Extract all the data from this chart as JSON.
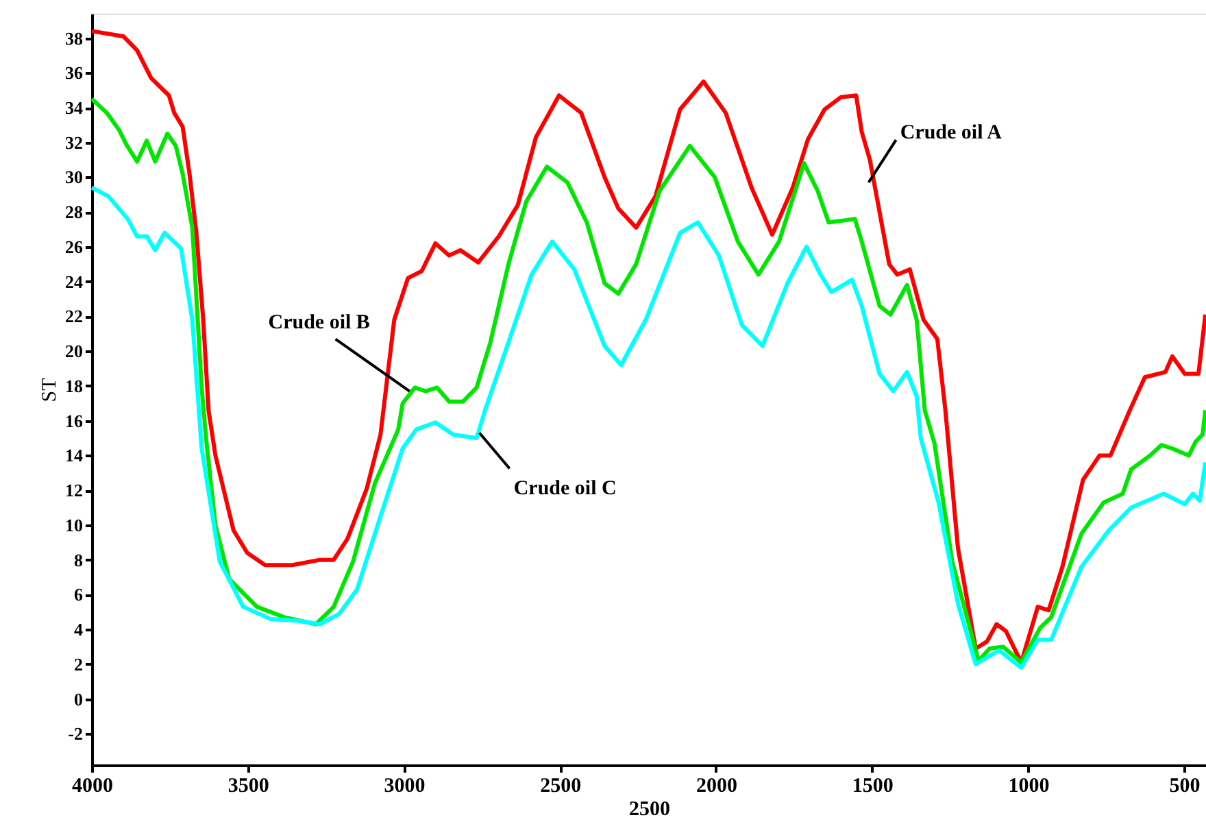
{
  "chart_data": {
    "type": "line",
    "xlabel": "2500",
    "ylabel": "ST",
    "xlim": [
      4000,
      430
    ],
    "ylim": [
      -3.8,
      39.4
    ],
    "xticks": [
      4000,
      3500,
      3000,
      2500,
      2000,
      1500,
      1000,
      500
    ],
    "yticks": [
      -2,
      0,
      2,
      4,
      6,
      8,
      10,
      12,
      14,
      16,
      18,
      20,
      22,
      24,
      26,
      28,
      30,
      32,
      34,
      36,
      38
    ],
    "grid": false,
    "marker": "none",
    "line_style": "solid",
    "series": [
      {
        "color": "#ff0000",
        "x": [
          4000,
          3899,
          3855,
          3810,
          3753,
          3736,
          3709,
          3687,
          3665,
          3643,
          3626,
          3604,
          3546,
          3502,
          3445,
          3357,
          3269,
          3225,
          3181,
          3119,
          3075,
          3031,
          2987,
          2943,
          2899,
          2855,
          2819,
          2762,
          2696,
          2635,
          2577,
          2503,
          2432,
          2357,
          2313,
          2256,
          2194,
          2115,
          2040,
          1969,
          1886,
          1820,
          1754,
          1705,
          1652,
          1600,
          1551,
          1533,
          1507,
          1445,
          1419,
          1379,
          1335,
          1291,
          1265,
          1225,
          1168,
          1132,
          1101,
          1071,
          1022,
          969,
          934,
          890,
          824,
          771,
          736,
          674,
          626,
          560,
          538,
          498,
          454,
          432
        ],
        "values": [
          38.4,
          38.1,
          37.3,
          35.7,
          34.7,
          33.7,
          32.9,
          30.2,
          26.8,
          21.8,
          16.6,
          14.0,
          9.7,
          8.4,
          7.7,
          7.7,
          8.0,
          8.0,
          9.2,
          12.1,
          15.2,
          21.8,
          24.2,
          24.6,
          26.2,
          25.5,
          25.8,
          25.1,
          26.6,
          28.4,
          32.3,
          34.7,
          33.7,
          30.0,
          28.2,
          27.1,
          28.9,
          33.9,
          35.5,
          33.7,
          29.4,
          26.7,
          29.4,
          32.2,
          33.9,
          34.6,
          34.7,
          32.6,
          31.0,
          25.0,
          24.4,
          24.7,
          21.8,
          20.7,
          16.6,
          8.7,
          2.9,
          3.3,
          4.3,
          3.9,
          2.1,
          5.3,
          5.1,
          7.6,
          12.6,
          14.0,
          14.0,
          16.6,
          18.5,
          18.8,
          19.7,
          18.7,
          18.7,
          22.1
        ]
      },
      {
        "color": "#00e600",
        "x": [
          4000,
          3952,
          3912,
          3890,
          3855,
          3824,
          3797,
          3758,
          3731,
          3709,
          3678,
          3648,
          3634,
          3604,
          3560,
          3471,
          3383,
          3282,
          3225,
          3163,
          3093,
          3018,
          3004,
          2965,
          2930,
          2894,
          2855,
          2811,
          2767,
          2723,
          2665,
          2608,
          2542,
          2476,
          2414,
          2357,
          2313,
          2256,
          2181,
          2084,
          2004,
          1930,
          1864,
          1798,
          1718,
          1674,
          1639,
          1555,
          1533,
          1476,
          1441,
          1388,
          1357,
          1331,
          1300,
          1243,
          1159,
          1123,
          1080,
          1022,
          961,
          926,
          829,
          758,
          697,
          670,
          609,
          573,
          538,
          485,
          463,
          441,
          432
        ],
        "values": [
          34.5,
          33.7,
          32.7,
          31.9,
          30.9,
          32.1,
          30.9,
          32.5,
          31.8,
          30.2,
          27.1,
          17.9,
          15.0,
          10.0,
          6.9,
          5.3,
          4.7,
          4.3,
          5.3,
          7.9,
          12.4,
          15.5,
          17.0,
          17.9,
          17.7,
          17.9,
          17.1,
          17.1,
          17.9,
          20.5,
          25.0,
          28.6,
          30.6,
          29.7,
          27.4,
          23.9,
          23.3,
          25.0,
          29.2,
          31.8,
          30.0,
          26.3,
          24.4,
          26.3,
          30.8,
          29.2,
          27.4,
          27.6,
          26.3,
          22.6,
          22.1,
          23.8,
          21.8,
          16.6,
          14.7,
          7.9,
          2.2,
          2.9,
          3.0,
          2.1,
          4.1,
          4.7,
          9.5,
          11.3,
          11.8,
          13.2,
          14.0,
          14.6,
          14.4,
          14.0,
          14.8,
          15.2,
          16.6
        ]
      },
      {
        "color": "#00ffff",
        "x": [
          4000,
          3947,
          3885,
          3855,
          3824,
          3797,
          3767,
          3714,
          3678,
          3648,
          3590,
          3515,
          3427,
          3339,
          3269,
          3207,
          3150,
          3075,
          3004,
          2960,
          2899,
          2842,
          2767,
          2740,
          2665,
          2591,
          2525,
          2454,
          2357,
          2304,
          2225,
          2115,
          2058,
          1991,
          1917,
          1851,
          1771,
          1710,
          1665,
          1630,
          1564,
          1533,
          1476,
          1432,
          1388,
          1357,
          1344,
          1287,
          1225,
          1168,
          1093,
          1022,
          969,
          926,
          829,
          741,
          670,
          566,
          498,
          472,
          450,
          432
        ],
        "values": [
          29.4,
          28.9,
          27.6,
          26.6,
          26.6,
          25.8,
          26.8,
          25.9,
          21.8,
          14.4,
          7.9,
          5.3,
          4.6,
          4.5,
          4.3,
          4.9,
          6.3,
          10.5,
          14.4,
          15.5,
          15.9,
          15.2,
          15.0,
          16.6,
          20.5,
          24.4,
          26.3,
          24.7,
          20.3,
          19.2,
          21.8,
          26.8,
          27.4,
          25.5,
          21.5,
          20.3,
          23.9,
          26.0,
          24.4,
          23.4,
          24.1,
          22.6,
          18.7,
          17.7,
          18.8,
          17.4,
          15.0,
          11.3,
          5.5,
          2.0,
          2.8,
          1.8,
          3.4,
          3.4,
          7.6,
          9.7,
          11.0,
          11.8,
          11.2,
          11.8,
          11.4,
          13.6
        ]
      }
    ],
    "annotations": [
      {
        "text": "Crude oil A",
        "x": 1511,
        "y": 29.7
      },
      {
        "text": "Crude oil B",
        "x": 2982,
        "y": 17.7
      },
      {
        "text": "Crude oil C",
        "x": 2758,
        "y": 15.3
      }
    ]
  }
}
